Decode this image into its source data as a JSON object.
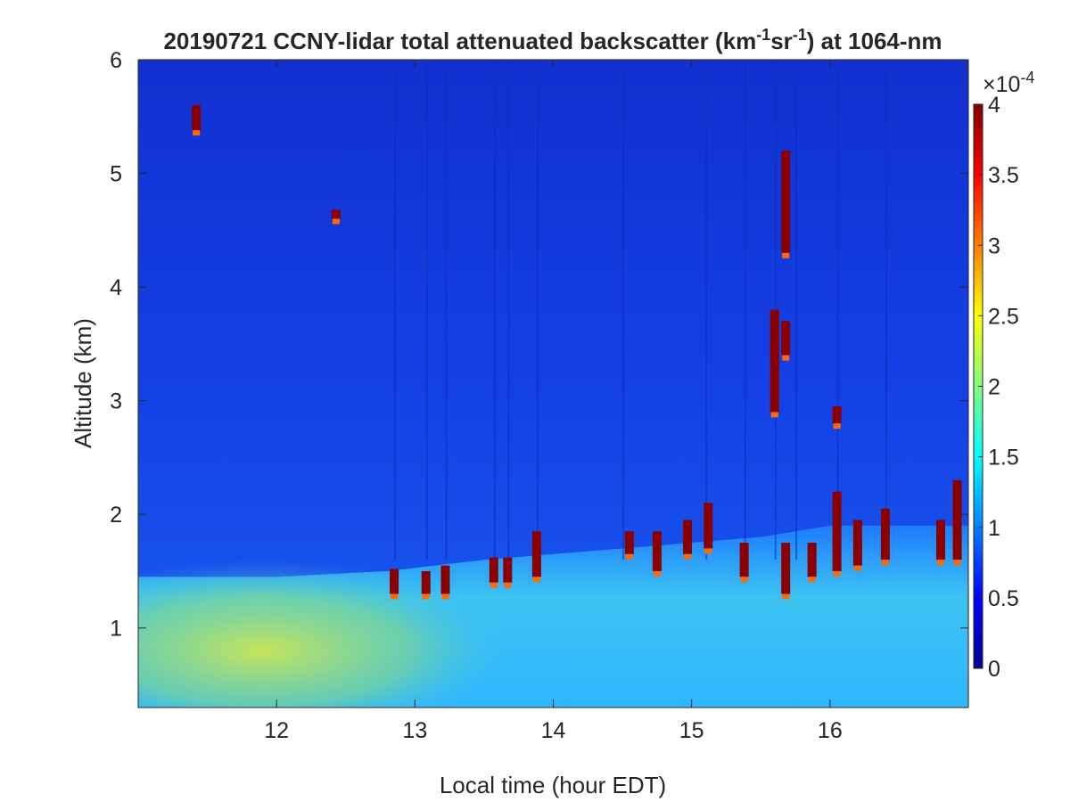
{
  "chart_data": {
    "type": "heatmap",
    "title": {
      "part1": "20190721 CCNY-lidar total attenuated backscatter (km",
      "sup1": "-1",
      "part2": "sr",
      "sup2": "-1",
      "part3": ") at 1064-nm"
    },
    "xlabel": "Local time (hour EDT)",
    "ylabel": "Altitude (km)",
    "xlim": [
      11,
      17
    ],
    "ylim": [
      0.3,
      6
    ],
    "xticks": [
      {
        "value": 12,
        "label": "12"
      },
      {
        "value": 13,
        "label": "13"
      },
      {
        "value": 14,
        "label": "14"
      },
      {
        "value": 15,
        "label": "15"
      },
      {
        "value": 16,
        "label": "16"
      }
    ],
    "yticks": [
      {
        "value": 1,
        "label": "1"
      },
      {
        "value": 2,
        "label": "2"
      },
      {
        "value": 3,
        "label": "3"
      },
      {
        "value": 4,
        "label": "4"
      },
      {
        "value": 5,
        "label": "5"
      },
      {
        "value": 6,
        "label": "6"
      }
    ],
    "colorbar": {
      "colormap": "jet",
      "range": [
        0,
        4
      ],
      "exponent_base": "×10",
      "exponent": "-4",
      "ticks": [
        {
          "value": 0,
          "label": "0"
        },
        {
          "value": 0.5,
          "label": "0.5"
        },
        {
          "value": 1,
          "label": "1"
        },
        {
          "value": 1.5,
          "label": "1.5"
        },
        {
          "value": 2,
          "label": "2"
        },
        {
          "value": 2.5,
          "label": "2.5"
        },
        {
          "value": 3,
          "label": "3"
        },
        {
          "value": 3.5,
          "label": "3.5"
        },
        {
          "value": 4,
          "label": "4"
        }
      ]
    },
    "features": {
      "boundary_layer_top_km": [
        {
          "time": 11.0,
          "alt": 1.45
        },
        {
          "time": 12.0,
          "alt": 1.45
        },
        {
          "time": 12.8,
          "alt": 1.5
        },
        {
          "time": 13.5,
          "alt": 1.6
        },
        {
          "time": 14.5,
          "alt": 1.7
        },
        {
          "time": 15.5,
          "alt": 1.8
        },
        {
          "time": 16.0,
          "alt": 1.9
        },
        {
          "time": 17.0,
          "alt": 1.9
        }
      ],
      "saturated_clouds": [
        {
          "time": 11.42,
          "alt_bottom": 5.38,
          "alt_top": 5.6
        },
        {
          "time": 12.43,
          "alt_bottom": 4.6,
          "alt_top": 4.68
        },
        {
          "time": 12.85,
          "alt_bottom": 1.3,
          "alt_top": 1.52
        },
        {
          "time": 13.08,
          "alt_bottom": 1.3,
          "alt_top": 1.5
        },
        {
          "time": 13.22,
          "alt_bottom": 1.3,
          "alt_top": 1.55
        },
        {
          "time": 13.57,
          "alt_bottom": 1.4,
          "alt_top": 1.62
        },
        {
          "time": 13.67,
          "alt_bottom": 1.4,
          "alt_top": 1.62
        },
        {
          "time": 13.88,
          "alt_bottom": 1.45,
          "alt_top": 1.85
        },
        {
          "time": 14.55,
          "alt_bottom": 1.65,
          "alt_top": 1.85
        },
        {
          "time": 14.75,
          "alt_bottom": 1.5,
          "alt_top": 1.85
        },
        {
          "time": 14.97,
          "alt_bottom": 1.65,
          "alt_top": 1.95
        },
        {
          "time": 15.12,
          "alt_bottom": 1.7,
          "alt_top": 2.1
        },
        {
          "time": 15.38,
          "alt_bottom": 1.45,
          "alt_top": 1.75
        },
        {
          "time": 15.6,
          "alt_bottom": 2.9,
          "alt_top": 3.8
        },
        {
          "time": 15.68,
          "alt_bottom": 1.3,
          "alt_top": 1.75
        },
        {
          "time": 15.68,
          "alt_bottom": 3.4,
          "alt_top": 3.7
        },
        {
          "time": 15.68,
          "alt_bottom": 4.3,
          "alt_top": 5.2
        },
        {
          "time": 15.87,
          "alt_bottom": 1.45,
          "alt_top": 1.75
        },
        {
          "time": 16.05,
          "alt_bottom": 1.5,
          "alt_top": 2.2
        },
        {
          "time": 16.05,
          "alt_bottom": 2.8,
          "alt_top": 2.95
        },
        {
          "time": 16.2,
          "alt_bottom": 1.55,
          "alt_top": 1.95
        },
        {
          "time": 16.4,
          "alt_bottom": 1.6,
          "alt_top": 2.05
        },
        {
          "time": 16.8,
          "alt_bottom": 1.6,
          "alt_top": 1.95
        },
        {
          "time": 16.92,
          "alt_bottom": 1.6,
          "alt_top": 2.3
        }
      ]
    }
  }
}
